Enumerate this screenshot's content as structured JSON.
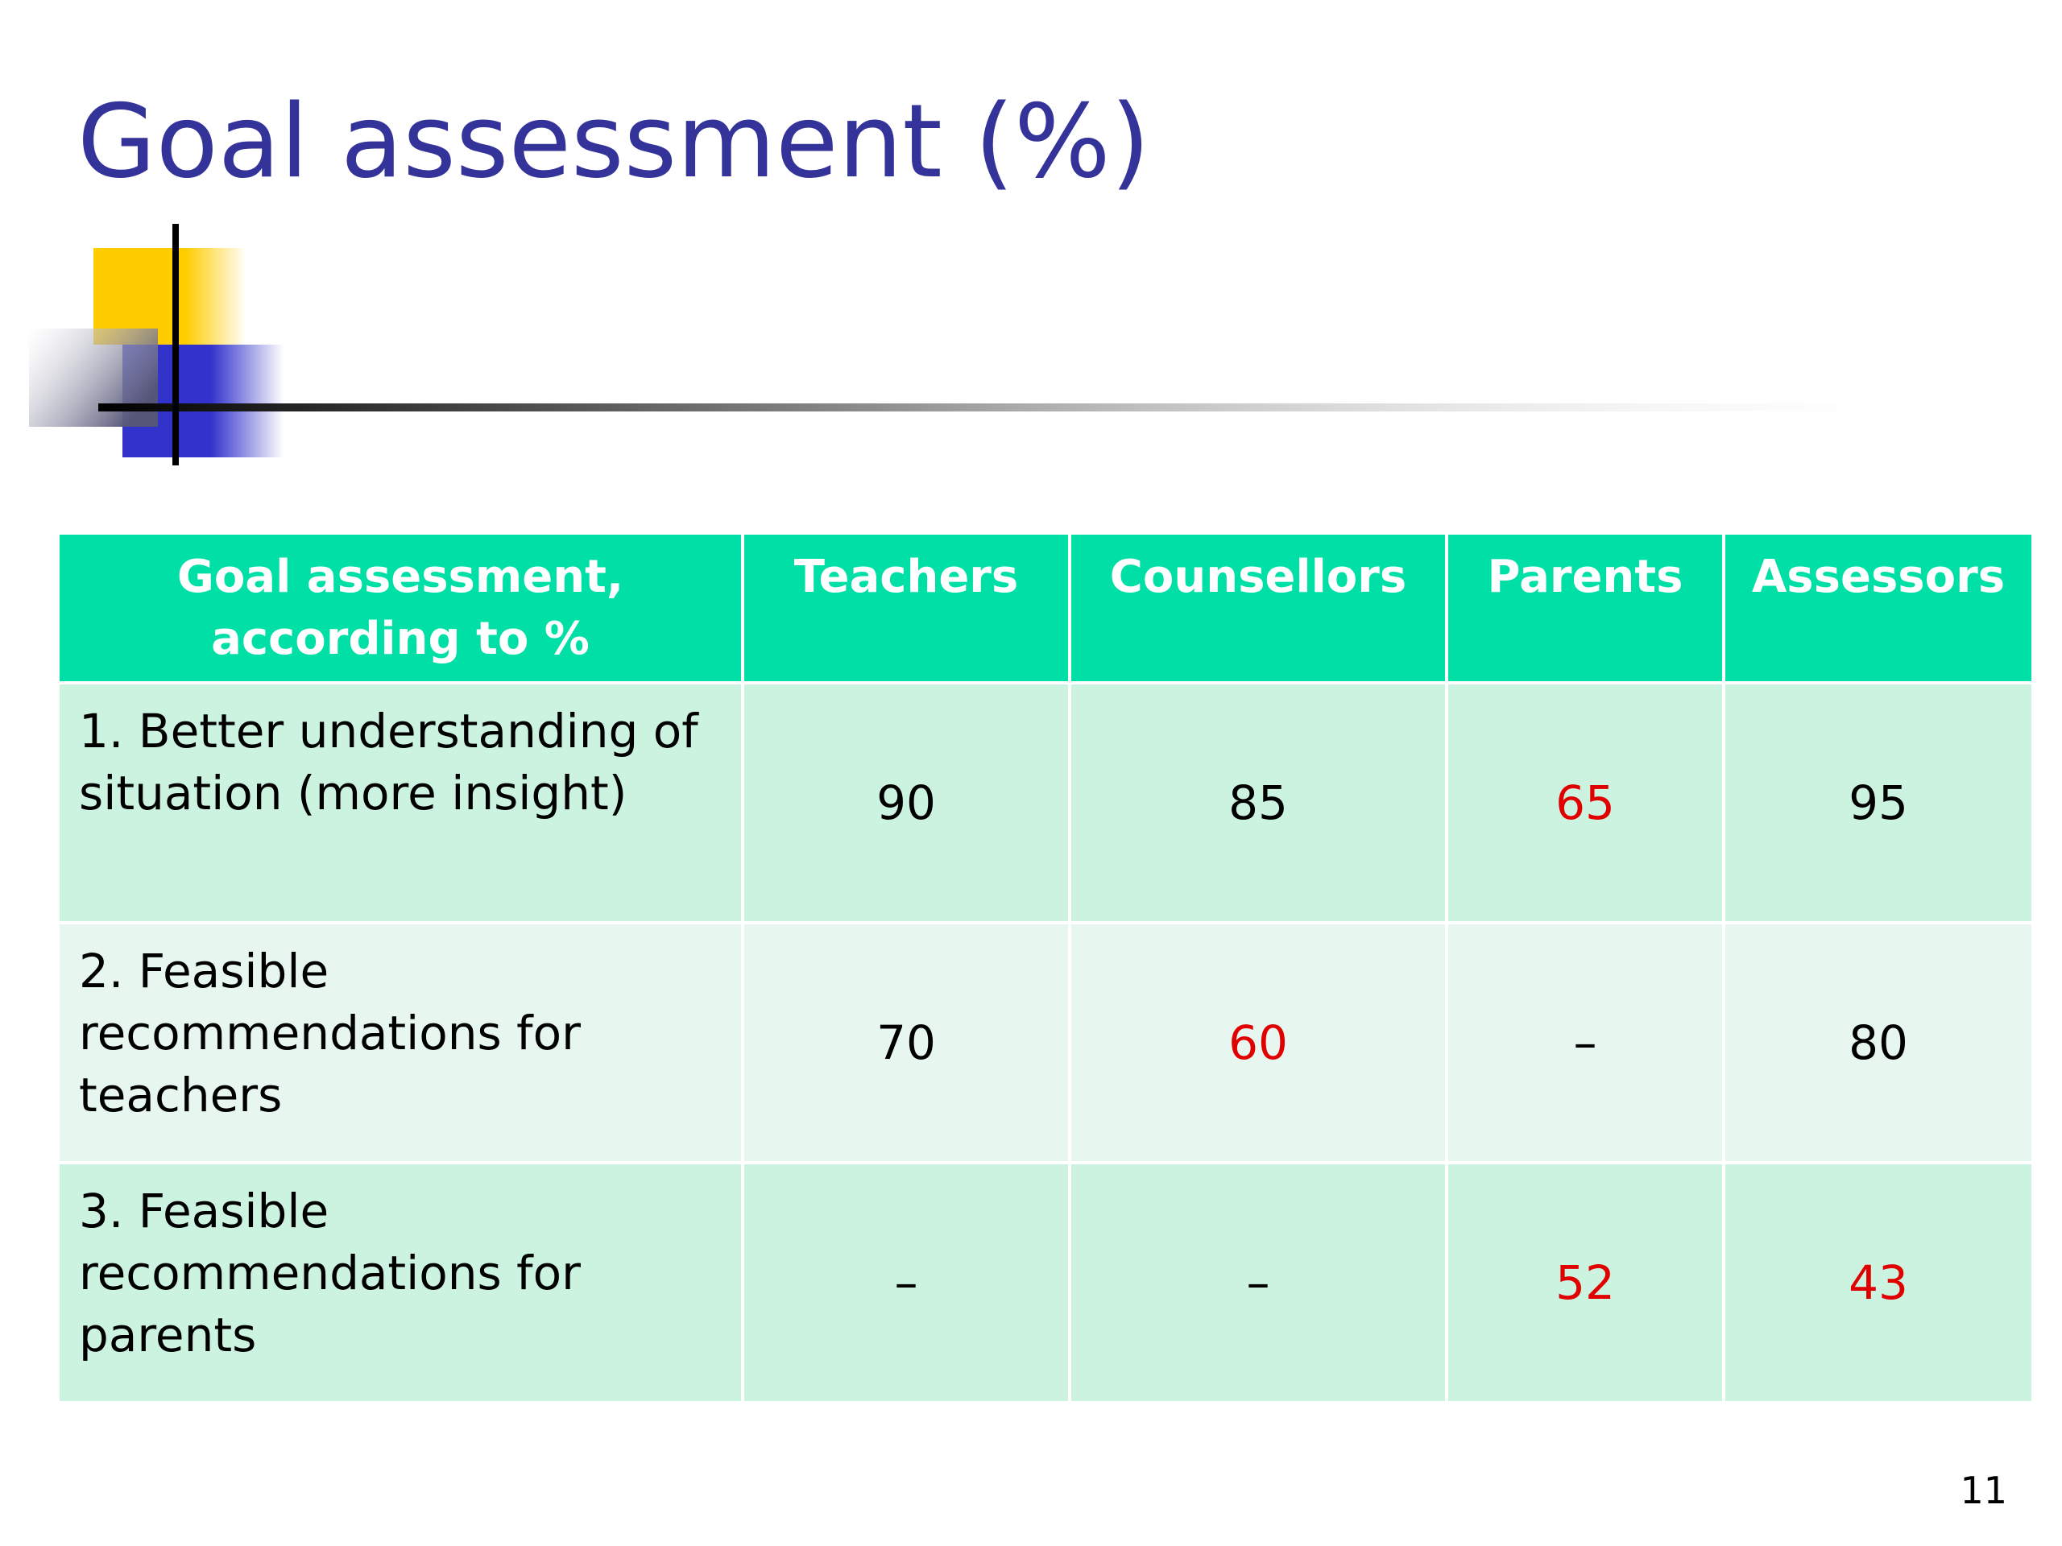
{
  "slide": {
    "title": "Goal assessment (%)",
    "page_number": "11"
  },
  "table": {
    "headers": [
      "Goal assessment, according to %",
      "Teachers",
      "Counsellors",
      "Parents",
      "Assessors"
    ],
    "rows": [
      {
        "label": "1. Better understanding of situation (more insight)",
        "values": [
          "90",
          "85",
          "65",
          "95"
        ],
        "highlighted": [
          false,
          false,
          true,
          false
        ]
      },
      {
        "label": "2. Feasible recommendations for teachers",
        "values": [
          "70",
          "60",
          "–",
          "80"
        ],
        "highlighted": [
          false,
          true,
          false,
          false
        ]
      },
      {
        "label": "3. Feasible recommendations for parents",
        "values": [
          "–",
          "–",
          "52",
          "43"
        ],
        "highlighted": [
          false,
          false,
          true,
          true
        ]
      }
    ]
  },
  "colors": {
    "title": "#333399",
    "header_background": "#00e0a6",
    "row_odd_background": "#ccf3e0",
    "row_even_background": "#e7f7f0",
    "highlight_value": "#e00000"
  }
}
